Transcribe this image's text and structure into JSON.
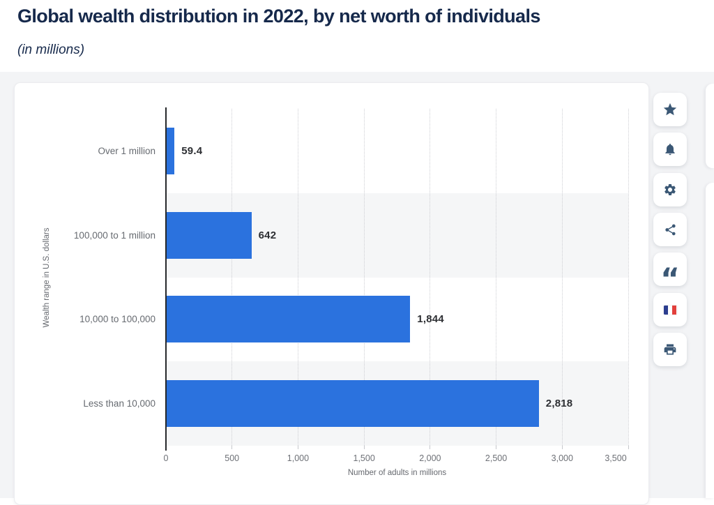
{
  "header": {
    "title": "Global wealth distribution in 2022, by net worth of individuals",
    "subtitle": "(in millions)"
  },
  "chart_data": {
    "type": "bar",
    "orientation": "horizontal",
    "title": "Global wealth distribution in 2022, by net worth of individuals (in millions)",
    "categories": [
      "Over 1 million",
      "100,000 to 1 million",
      "10,000 to 100,000",
      "Less than 10,000"
    ],
    "values": [
      59.4,
      642,
      1844,
      2818
    ],
    "value_labels": [
      "59.4",
      "642",
      "1,844",
      "2,818"
    ],
    "xlabel": "Number of adults in millions",
    "ylabel": "Wealth range in U.S. dollars",
    "xlim": [
      0,
      3500
    ],
    "xticks": [
      0,
      500,
      1000,
      1500,
      2000,
      2500,
      3000,
      3500
    ],
    "xtick_labels": [
      "0",
      "500",
      "1,000",
      "1,500",
      "2,000",
      "2,500",
      "3,000",
      "3,500"
    ],
    "grid": "dotted-vertical",
    "legend": "none",
    "bar_color": "#2b72de",
    "band_color": "#f5f6f7"
  },
  "toolbar": {
    "buttons": [
      {
        "name": "favorite",
        "icon": "star-icon"
      },
      {
        "name": "notifications",
        "icon": "bell-icon"
      },
      {
        "name": "settings",
        "icon": "gear-icon"
      },
      {
        "name": "share",
        "icon": "share-icon"
      },
      {
        "name": "cite",
        "icon": "quote-icon"
      },
      {
        "name": "language-french",
        "icon": "french-flag-icon"
      },
      {
        "name": "print",
        "icon": "printer-icon"
      }
    ]
  },
  "icons": {
    "cite_glyph": "“"
  },
  "colors": {
    "title_navy": "#16294b",
    "bar_blue": "#2b72de",
    "icon_slate": "#3b5875",
    "flag_blue": "#2c3e8f",
    "flag_red": "#e2403c",
    "section_bg": "#f3f4f6"
  }
}
